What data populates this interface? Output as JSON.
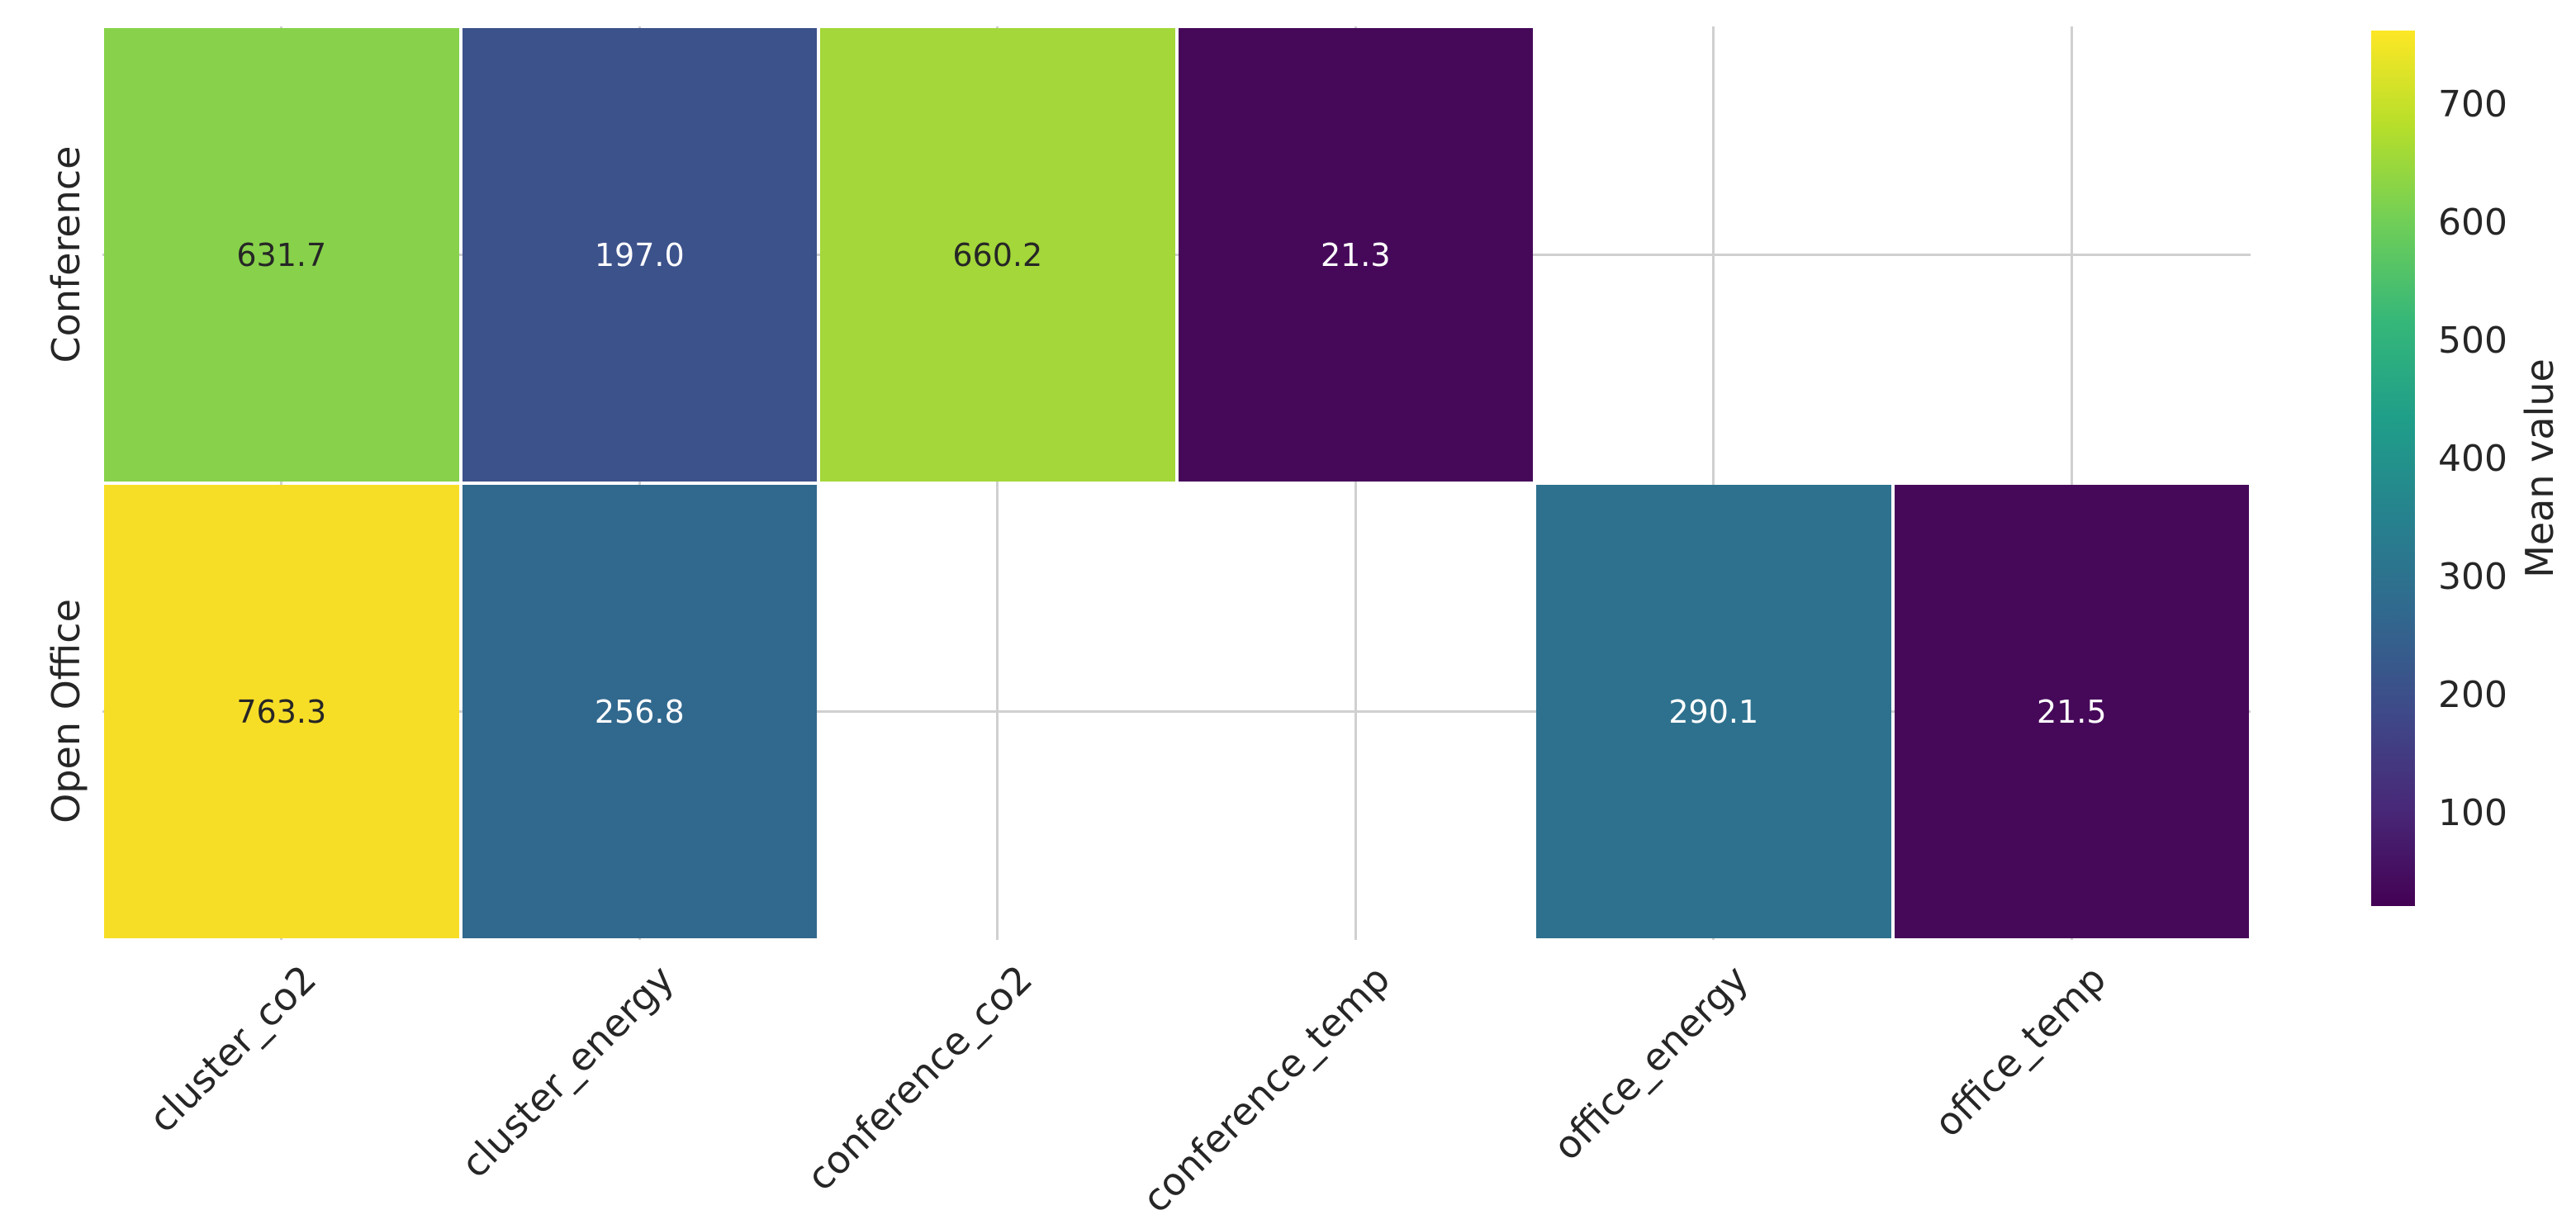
{
  "chart_data": {
    "type": "heatmap",
    "rows": [
      "Conference",
      "Open Office"
    ],
    "columns": [
      "cluster_co2",
      "cluster_energy",
      "conference_co2",
      "conference_temp",
      "office_energy",
      "office_temp"
    ],
    "values": [
      [
        631.7,
        197.0,
        660.2,
        21.3,
        null,
        null
      ],
      [
        763.3,
        256.8,
        null,
        null,
        290.1,
        21.5
      ]
    ],
    "value_labels": [
      [
        "631.7",
        "197.0",
        "660.2",
        "21.3",
        "",
        ""
      ],
      [
        "763.3",
        "256.8",
        "",
        "",
        "290.1",
        "21.5"
      ]
    ],
    "cell_colors": [
      [
        "#87d24a",
        "#3c528b",
        "#a3d73a",
        "#46095a",
        "",
        ""
      ],
      [
        "#f7de26",
        "#31688e",
        "",
        "",
        "#2e718e",
        "#46095a"
      ]
    ],
    "text_colors": [
      [
        "#262626",
        "#ffffff",
        "#262626",
        "#ffffff",
        "",
        ""
      ],
      [
        "#262626",
        "#ffffff",
        "",
        "",
        "#ffffff",
        "#ffffff"
      ]
    ],
    "colorbar": {
      "label": "Mean value",
      "tick_labels": [
        "100",
        "200",
        "300",
        "400",
        "500",
        "600",
        "700"
      ],
      "ticks": [
        100,
        200,
        300,
        400,
        500,
        600,
        700
      ],
      "vmin": 21.3,
      "vmax": 763.3,
      "gradient_bottom_to_top": [
        "#440154",
        "#482878",
        "#3e4a89",
        "#31688e",
        "#26828e",
        "#1f9e89",
        "#35b779",
        "#6ece58",
        "#b5de2b",
        "#fde725"
      ]
    },
    "grid": true,
    "grid_color": "#d0d0d0",
    "background": "#ffffff",
    "legend_position": "right",
    "x_tick_rotation_deg": 45,
    "y_tick_rotation_deg": 90
  }
}
